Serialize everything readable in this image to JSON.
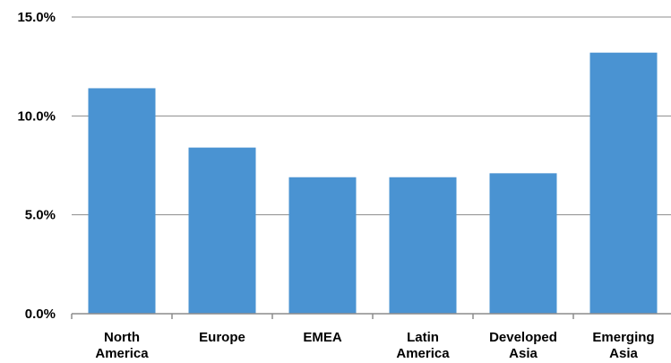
{
  "chart_data": {
    "type": "bar",
    "title": "",
    "xlabel": "",
    "ylabel": "",
    "categories": [
      [
        "North",
        "America"
      ],
      [
        "Europe"
      ],
      [
        "EMEA"
      ],
      [
        "Latin",
        "America"
      ],
      [
        "Developed",
        "Asia"
      ],
      [
        "Emerging",
        "Asia"
      ]
    ],
    "values": [
      11.4,
      8.4,
      6.9,
      6.9,
      7.1,
      13.2
    ],
    "ylim": [
      0,
      15
    ],
    "yticks": [
      0,
      5,
      10,
      15
    ],
    "ytick_labels": [
      "0.0%",
      "5.0%",
      "10.0%",
      "15.0%"
    ],
    "grid": true,
    "colors": {
      "bar": "#4a93d2"
    }
  }
}
